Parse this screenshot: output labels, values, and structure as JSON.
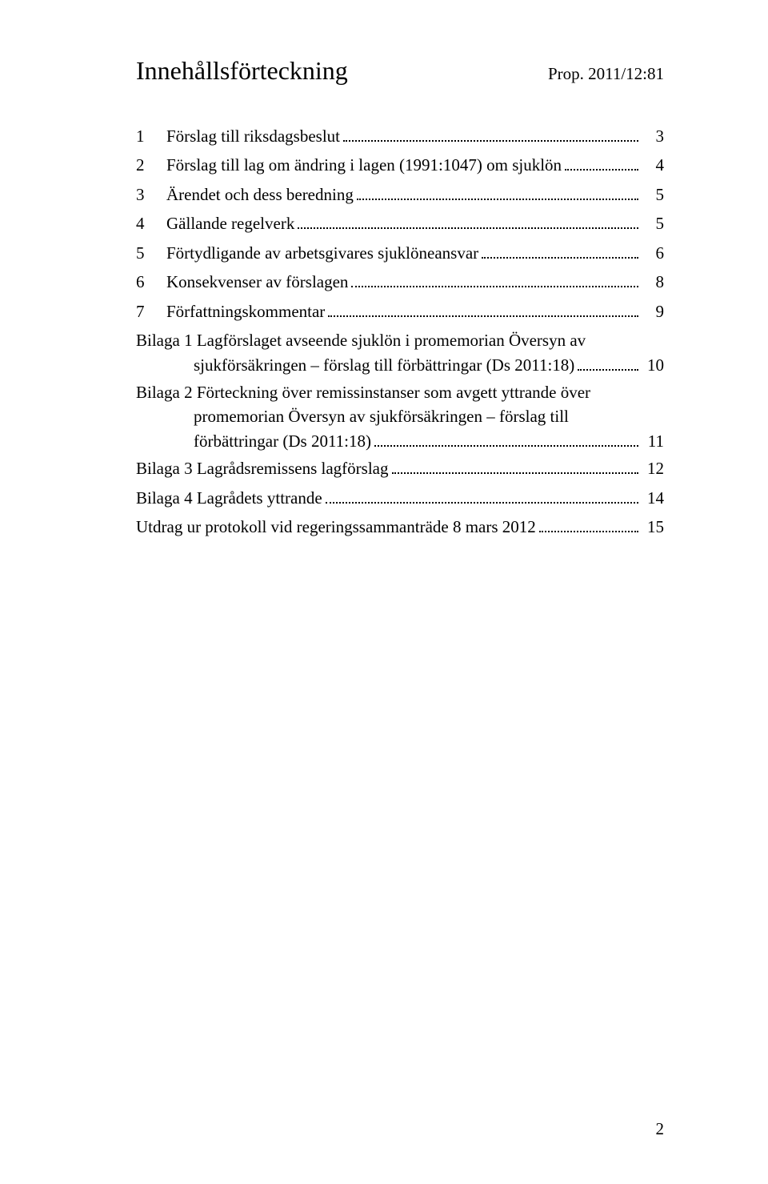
{
  "header": {
    "title": "Innehållsförteckning",
    "prop": "Prop. 2011/12:81"
  },
  "toc_numbered": [
    {
      "num": "1",
      "label": "Förslag till riksdagsbeslut",
      "page": "3"
    },
    {
      "num": "2",
      "label": "Förslag till lag om ändring i lagen (1991:1047) om sjuklön",
      "page": "4"
    },
    {
      "num": "3",
      "label": "Ärendet och dess beredning",
      "page": "5"
    },
    {
      "num": "4",
      "label": "Gällande regelverk",
      "page": "5"
    },
    {
      "num": "5",
      "label": "Förtydligande av arbetsgivares sjuklöneansvar",
      "page": "6"
    },
    {
      "num": "6",
      "label": "Konsekvenser av förslagen",
      "page": "8"
    },
    {
      "num": "7",
      "label": "Författningskommentar",
      "page": "9"
    }
  ],
  "toc_bilagor": [
    {
      "line1": "Bilaga 1 Lagförslaget avseende sjuklön i promemorian Översyn av",
      "line2": "sjukförsäkringen – förslag till förbättringar (Ds 2011:18)",
      "page": "10"
    },
    {
      "line1": "Bilaga 2 Förteckning över remissinstanser som avgett yttrande över",
      "line2": "promemorian Översyn av sjukförsäkringen – förslag till",
      "line3": "förbättringar (Ds 2011:18)",
      "page": "11"
    },
    {
      "single": "Bilaga 3 Lagrådsremissens lagförslag",
      "page": "12"
    },
    {
      "single": "Bilaga 4 Lagrådets yttrande",
      "page": "14"
    }
  ],
  "toc_final": {
    "label": "Utdrag ur protokoll vid regeringssammanträde 8 mars 2012",
    "page": "15"
  },
  "page_number": "2",
  "colors": {
    "text": "#000000",
    "background": "#ffffff"
  },
  "fonts": {
    "family": "Times New Roman",
    "title_size_pt": 24,
    "body_size_pt": 16
  }
}
